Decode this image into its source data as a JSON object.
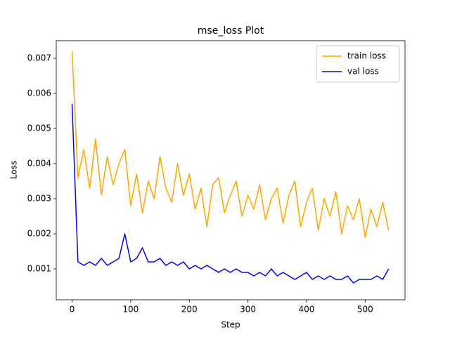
{
  "chart_data": {
    "type": "line",
    "title": "mse_loss Plot",
    "x_label": "Step",
    "y_label": "Loss",
    "x": [
      0,
      10,
      20,
      30,
      40,
      50,
      60,
      70,
      80,
      90,
      100,
      110,
      120,
      130,
      140,
      150,
      160,
      170,
      180,
      190,
      200,
      210,
      220,
      230,
      240,
      250,
      260,
      270,
      280,
      290,
      300,
      310,
      320,
      330,
      340,
      350,
      360,
      370,
      380,
      390,
      400,
      410,
      420,
      430,
      440,
      450,
      460,
      470,
      480,
      490,
      500,
      510,
      520,
      530,
      540
    ],
    "series": [
      {
        "name": "train loss",
        "color": "orange",
        "values": [
          0.0072,
          0.0036,
          0.0044,
          0.0033,
          0.0047,
          0.0031,
          0.0042,
          0.0034,
          0.004,
          0.0044,
          0.0028,
          0.0037,
          0.0026,
          0.0035,
          0.003,
          0.0042,
          0.0033,
          0.0029,
          0.004,
          0.0031,
          0.0037,
          0.0027,
          0.0033,
          0.0022,
          0.0034,
          0.0036,
          0.0026,
          0.0031,
          0.0035,
          0.0025,
          0.0031,
          0.0027,
          0.0034,
          0.0024,
          0.003,
          0.0033,
          0.0023,
          0.0031,
          0.0035,
          0.0022,
          0.0029,
          0.0033,
          0.0021,
          0.003,
          0.0025,
          0.0032,
          0.002,
          0.0028,
          0.0024,
          0.003,
          0.0019,
          0.0027,
          0.0022,
          0.0029,
          0.0021
        ]
      },
      {
        "name": "val loss",
        "color": "blue",
        "values": [
          0.0057,
          0.0012,
          0.0011,
          0.0012,
          0.0011,
          0.0013,
          0.0011,
          0.0012,
          0.0013,
          0.002,
          0.0012,
          0.0013,
          0.0016,
          0.0012,
          0.0012,
          0.0013,
          0.0011,
          0.0012,
          0.0011,
          0.0012,
          0.001,
          0.0011,
          0.001,
          0.0011,
          0.001,
          0.0009,
          0.001,
          0.0009,
          0.001,
          0.0009,
          0.0009,
          0.0008,
          0.0009,
          0.0008,
          0.001,
          0.0008,
          0.0009,
          0.0008,
          0.0007,
          0.0008,
          0.0009,
          0.0007,
          0.0008,
          0.0007,
          0.0008,
          0.0007,
          0.0007,
          0.0008,
          0.0006,
          0.0007,
          0.0007,
          0.0007,
          0.0008,
          0.0007,
          0.001
        ]
      }
    ],
    "xlim": [
      -27,
      568
    ],
    "ylim": [
      0.00012,
      0.0075
    ],
    "xticks": [
      0,
      100,
      200,
      300,
      400,
      500
    ],
    "yticks": [
      0.001,
      0.002,
      0.003,
      0.004,
      0.005,
      0.006,
      0.007
    ],
    "legend": "upper right",
    "grid": false
  }
}
